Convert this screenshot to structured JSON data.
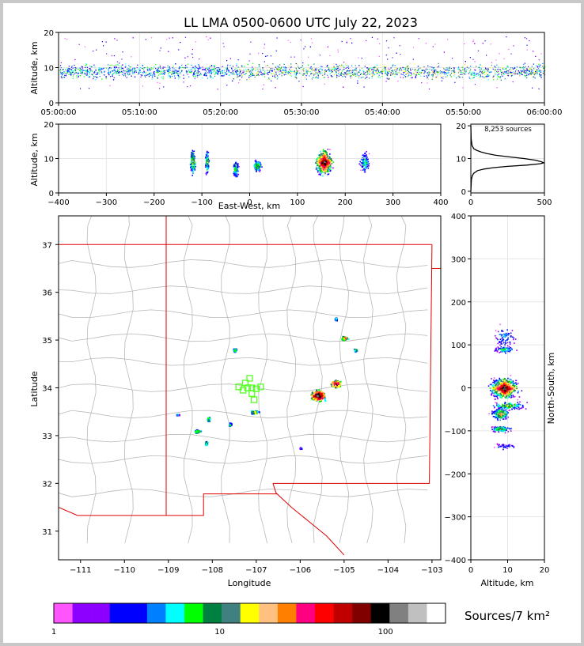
{
  "title": "LL LMA 0500-0600 UTC July 22, 2023",
  "colorbar": {
    "label": "Sources/7 km²",
    "tick_labels": [
      "1",
      "10",
      "100"
    ],
    "tick_values": [
      1,
      10,
      100
    ],
    "colors": [
      "#ff55ff",
      "#8b00ff",
      "#8b00ff",
      "#0000ff",
      "#0000ff",
      "#0080ff",
      "#00ffff",
      "#00ff00",
      "#008040",
      "#408080",
      "#ffff00",
      "#ffc080",
      "#ff8000",
      "#ff0080",
      "#ff0000",
      "#c00000",
      "#800000",
      "#000000",
      "#808080",
      "#c0c0c0",
      "#ffffff"
    ]
  },
  "chart_data": [
    {
      "type": "scatter",
      "panel": "time-altitude",
      "ylabel": "Altitude, km",
      "ylim": [
        0,
        20
      ],
      "yticks": [
        0,
        10,
        20
      ],
      "xlim": [
        "05:00:00",
        "06:00:00"
      ],
      "xticks": [
        "05:00:00",
        "05:10:00",
        "05:20:00",
        "05:30:00",
        "05:40:00",
        "05:50:00",
        "06:00:00"
      ],
      "description_values": {
        "altitude_core_km": [
          6,
          12
        ]
      }
    },
    {
      "type": "scatter",
      "panel": "east-west-altitude",
      "xlabel": "East-West, km",
      "ylabel": "Altitude, km",
      "xlim": [
        -400,
        400
      ],
      "xticks": [
        -400,
        -300,
        -200,
        -100,
        0,
        100,
        200,
        300,
        400
      ],
      "ylim": [
        0,
        20
      ],
      "yticks": [
        0,
        10,
        20
      ],
      "clusters_x_km": [
        -120,
        -90,
        -30,
        15,
        155,
        240
      ]
    },
    {
      "type": "line",
      "panel": "altitude-histogram",
      "annotation": "8,253 sources",
      "xlim": [
        0,
        500
      ],
      "xticks": [
        0,
        500
      ],
      "ylim": [
        0,
        20
      ],
      "yticks": [
        0,
        10,
        20
      ],
      "points": [
        [
          0,
          20
        ],
        [
          2,
          16
        ],
        [
          8,
          14
        ],
        [
          20,
          13
        ],
        [
          40,
          12.5
        ],
        [
          70,
          12
        ],
        [
          110,
          11.5
        ],
        [
          170,
          11
        ],
        [
          260,
          10.5
        ],
        [
          360,
          10
        ],
        [
          440,
          9.5
        ],
        [
          480,
          9
        ],
        [
          495,
          8.7
        ],
        [
          470,
          8.4
        ],
        [
          380,
          8
        ],
        [
          250,
          7.6
        ],
        [
          150,
          7.2
        ],
        [
          90,
          6.8
        ],
        [
          45,
          6.3
        ],
        [
          20,
          5.5
        ],
        [
          10,
          4.8
        ],
        [
          4,
          3.5
        ],
        [
          1,
          1
        ],
        [
          0,
          0
        ]
      ]
    },
    {
      "type": "scatter",
      "panel": "plan-view-map",
      "xlabel": "Longitude",
      "ylabel": "Latitude",
      "xlim": [
        -111.5,
        -102.8
      ],
      "ylim": [
        30.4,
        37.6
      ],
      "xticks": [
        -111,
        -110,
        -109,
        -108,
        -107,
        -106,
        -105,
        -104,
        -103
      ],
      "yticks": [
        31,
        32,
        33,
        34,
        35,
        36,
        37
      ],
      "stations_lonlat": [
        [
          -107.15,
          34.2
        ],
        [
          -107.25,
          34.1
        ],
        [
          -107.2,
          34.0
        ],
        [
          -107.4,
          34.02
        ],
        [
          -107.3,
          33.95
        ],
        [
          -107.1,
          34.0
        ],
        [
          -107.0,
          33.98
        ],
        [
          -107.1,
          33.88
        ],
        [
          -107.05,
          33.75
        ],
        [
          -106.9,
          34.02
        ]
      ],
      "clusters_lonlat": [
        [
          -107.5,
          34.8
        ],
        [
          -107.05,
          33.5
        ],
        [
          -107.6,
          33.25
        ],
        [
          -108.1,
          33.35
        ],
        [
          -108.35,
          33.1
        ],
        [
          -108.8,
          33.45
        ],
        [
          -108.15,
          32.85
        ],
        [
          -105.6,
          33.85
        ],
        [
          -105.2,
          34.1
        ],
        [
          -105.0,
          35.05
        ],
        [
          -104.75,
          34.8
        ],
        [
          -105.2,
          35.45
        ],
        [
          -106.0,
          32.75
        ]
      ]
    },
    {
      "type": "scatter",
      "panel": "altitude-north-south",
      "xlabel": "Altitude, km",
      "ylabel": "North-South, km",
      "xlim": [
        0,
        20
      ],
      "xticks": [
        0,
        10,
        20
      ],
      "ylim": [
        -400,
        400
      ],
      "yticks": [
        -400,
        -300,
        -200,
        -100,
        0,
        100,
        200,
        300,
        400
      ]
    }
  ]
}
